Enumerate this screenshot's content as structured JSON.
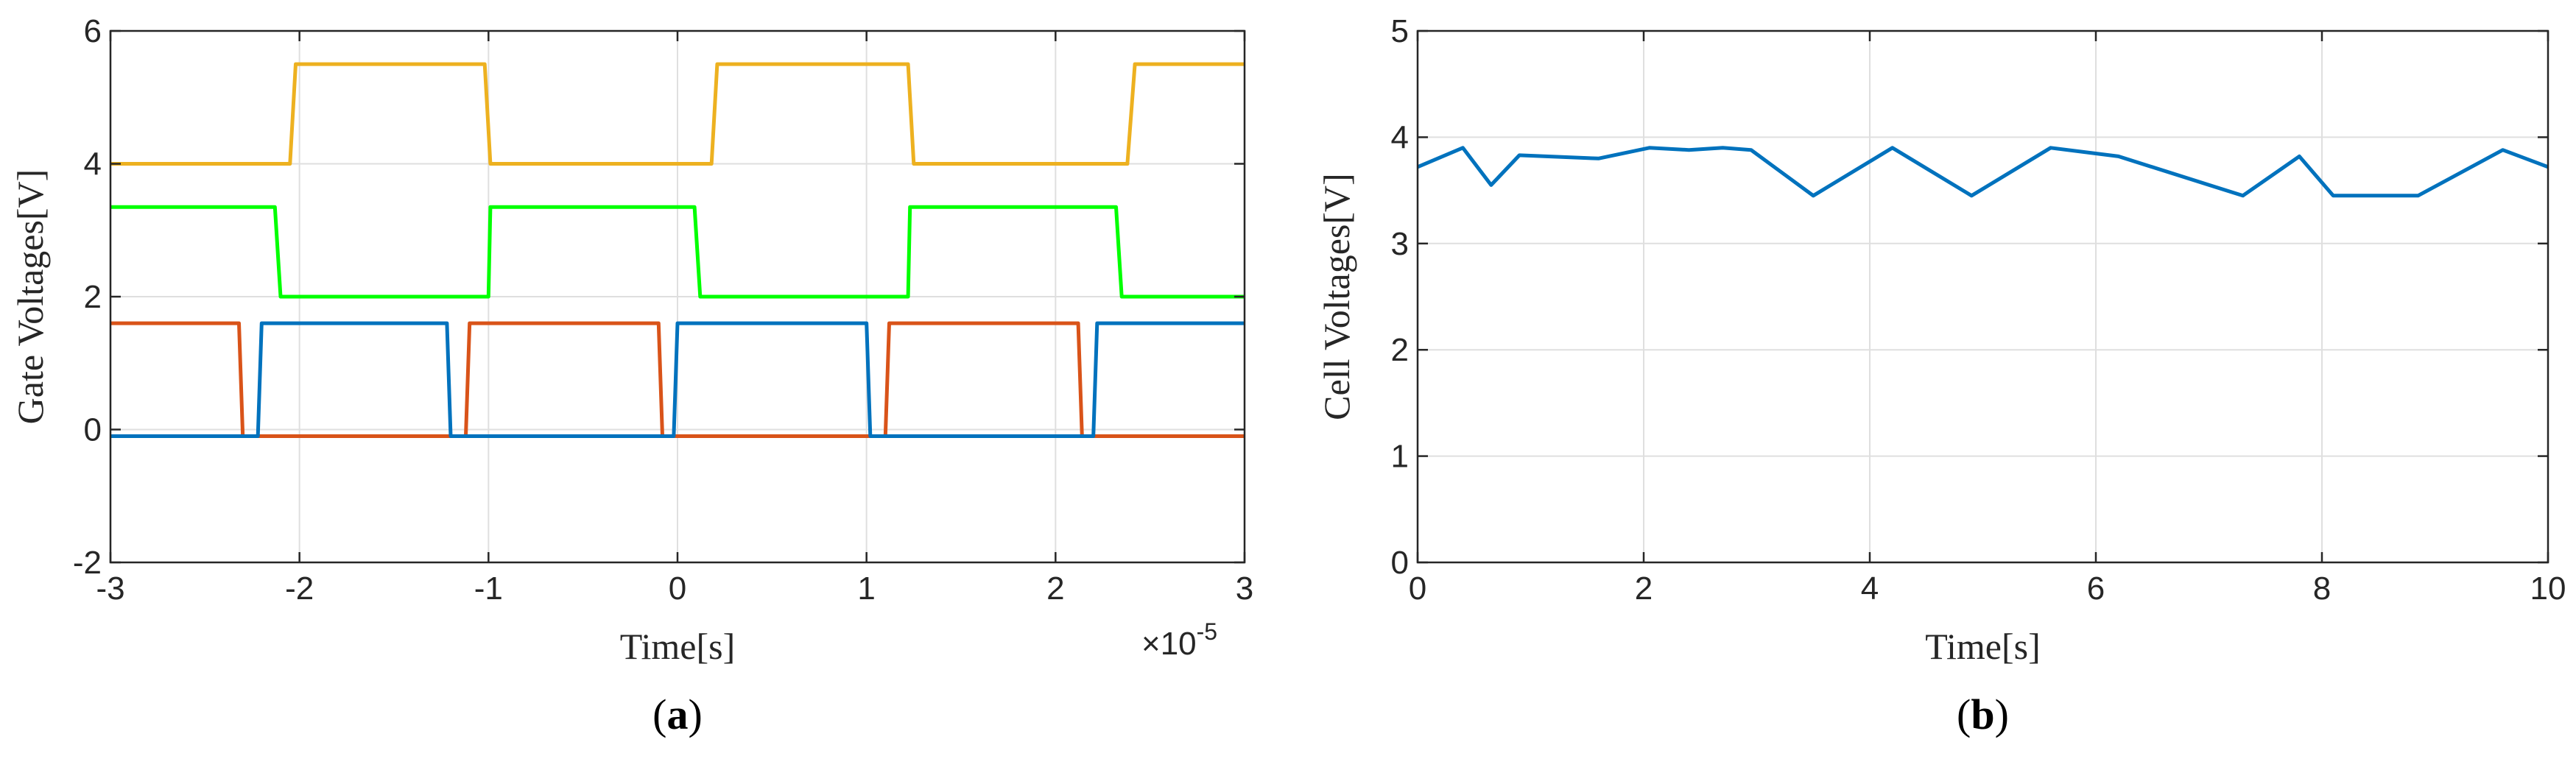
{
  "chart_data": [
    {
      "type": "line",
      "panel_label": "a",
      "xlabel": "Time[s]",
      "ylabel": "Gate Voltages[V]",
      "xlim": [
        -3,
        3
      ],
      "ylim": [
        -2,
        6
      ],
      "x_multiplier_text": "×10",
      "x_multiplier_exp": "-5",
      "xticks": [
        -3,
        -2,
        -1,
        0,
        1,
        2,
        3
      ],
      "yticks": [
        -2,
        0,
        2,
        4,
        6
      ],
      "grid": true,
      "series": [
        {
          "color": "#EDB120",
          "x": [
            -3,
            -2.05,
            -2.02,
            -1.02,
            -0.99,
            0.18,
            0.21,
            1.22,
            1.25,
            2.38,
            2.42,
            3
          ],
          "y": [
            4.0,
            4.0,
            5.5,
            5.5,
            4.0,
            4.0,
            5.5,
            5.5,
            4.0,
            4.0,
            5.5,
            5.5
          ]
        },
        {
          "color": "#00FF00",
          "x": [
            -3,
            -2.13,
            -2.1,
            -1.0,
            -0.99,
            0.09,
            0.12,
            1.22,
            1.23,
            2.32,
            2.35,
            3
          ],
          "y": [
            3.35,
            3.35,
            2.0,
            2.0,
            3.35,
            3.35,
            2.0,
            2.0,
            3.35,
            3.35,
            2.0,
            2.0
          ]
        },
        {
          "color": "#D95319",
          "x": [
            -3,
            -2.32,
            -2.3,
            -1.12,
            -1.1,
            -0.1,
            -0.08,
            1.1,
            1.12,
            2.12,
            2.14,
            3
          ],
          "y": [
            1.6,
            1.6,
            -0.1,
            -0.1,
            1.6,
            1.6,
            -0.1,
            -0.1,
            1.6,
            1.6,
            -0.1,
            -0.1
          ]
        },
        {
          "color": "#0072BD",
          "x": [
            -3,
            -2.22,
            -2.2,
            -1.22,
            -1.2,
            -0.02,
            0.0,
            1.0,
            1.02,
            2.2,
            2.22,
            3
          ],
          "y": [
            -0.1,
            -0.1,
            1.6,
            1.6,
            -0.1,
            -0.1,
            1.6,
            1.6,
            -0.1,
            -0.1,
            1.6,
            1.6
          ]
        }
      ]
    },
    {
      "type": "line",
      "panel_label": "b",
      "xlabel": "Time[s]",
      "ylabel": "Cell Voltages[V]",
      "xlim": [
        0,
        10
      ],
      "ylim": [
        0,
        5
      ],
      "xticks": [
        0,
        2,
        4,
        6,
        8,
        10
      ],
      "yticks": [
        0,
        1,
        2,
        3,
        4,
        5
      ],
      "grid": true,
      "series": [
        {
          "color": "#0072BD",
          "x": [
            0,
            0.4,
            0.65,
            0.9,
            1.6,
            2.05,
            2.4,
            2.7,
            2.95,
            3.5,
            4.2,
            4.9,
            5.6,
            6.2,
            7.3,
            7.8,
            8.1,
            8.85,
            9.6,
            10
          ],
          "y": [
            3.72,
            3.9,
            3.55,
            3.83,
            3.8,
            3.9,
            3.88,
            3.9,
            3.88,
            3.45,
            3.9,
            3.45,
            3.9,
            3.82,
            3.45,
            3.82,
            3.45,
            3.45,
            3.88,
            3.72
          ]
        }
      ]
    }
  ]
}
